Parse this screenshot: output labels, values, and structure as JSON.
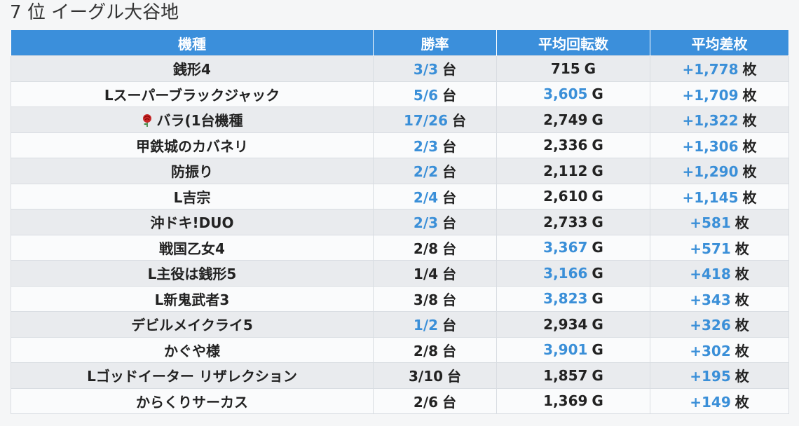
{
  "header": {
    "rank": "7",
    "rank_suffix": "位",
    "store_name": "イーグル大谷地"
  },
  "table": {
    "columns": [
      "機種",
      "勝率",
      "平均回転数",
      "平均差枚"
    ],
    "units": {
      "win": "台",
      "spins": "G",
      "diff": "枚"
    },
    "rows": [
      {
        "machine": "銭形4",
        "win": "3/3",
        "win_hl": true,
        "spins": "715",
        "spins_hl": false,
        "diff": "+1,778",
        "diff_hl": true
      },
      {
        "machine": "Lスーパーブラックジャック",
        "win": "5/6",
        "win_hl": true,
        "spins": "3,605",
        "spins_hl": true,
        "diff": "+1,709",
        "diff_hl": true
      },
      {
        "machine": "バラ(1台機種",
        "icon": "rose-icon",
        "win": "17/26",
        "win_hl": true,
        "spins": "2,749",
        "spins_hl": false,
        "diff": "+1,322",
        "diff_hl": true
      },
      {
        "machine": "甲鉄城のカバネリ",
        "win": "2/3",
        "win_hl": true,
        "spins": "2,336",
        "spins_hl": false,
        "diff": "+1,306",
        "diff_hl": true
      },
      {
        "machine": "防振り",
        "win": "2/2",
        "win_hl": true,
        "spins": "2,112",
        "spins_hl": false,
        "diff": "+1,290",
        "diff_hl": true
      },
      {
        "machine": "L吉宗",
        "win": "2/4",
        "win_hl": true,
        "spins": "2,610",
        "spins_hl": false,
        "diff": "+1,145",
        "diff_hl": true
      },
      {
        "machine": "沖ドキ!DUO",
        "win": "2/3",
        "win_hl": true,
        "spins": "2,733",
        "spins_hl": false,
        "diff": "+581",
        "diff_hl": true
      },
      {
        "machine": "戦国乙女4",
        "win": "2/8",
        "win_hl": false,
        "spins": "3,367",
        "spins_hl": true,
        "diff": "+571",
        "diff_hl": true
      },
      {
        "machine": "L主役は銭形5",
        "win": "1/4",
        "win_hl": false,
        "spins": "3,166",
        "spins_hl": true,
        "diff": "+418",
        "diff_hl": true
      },
      {
        "machine": "L新鬼武者3",
        "win": "3/8",
        "win_hl": false,
        "spins": "3,823",
        "spins_hl": true,
        "diff": "+343",
        "diff_hl": true
      },
      {
        "machine": "デビルメイクライ5",
        "win": "1/2",
        "win_hl": true,
        "spins": "2,934",
        "spins_hl": false,
        "diff": "+326",
        "diff_hl": true
      },
      {
        "machine": "かぐや様",
        "win": "2/8",
        "win_hl": false,
        "spins": "3,901",
        "spins_hl": true,
        "diff": "+302",
        "diff_hl": true
      },
      {
        "machine": "Lゴッドイーター リザレクション",
        "win": "3/10",
        "win_hl": false,
        "spins": "1,857",
        "spins_hl": false,
        "diff": "+195",
        "diff_hl": true
      },
      {
        "machine": "からくりサーカス",
        "win": "2/6",
        "win_hl": false,
        "spins": "1,369",
        "spins_hl": false,
        "diff": "+149",
        "diff_hl": true
      }
    ]
  },
  "colors": {
    "header_bg": "#3b8fdb",
    "highlight": "#3a8fd8",
    "row_odd": "#e9ebee",
    "row_even": "#fafbfc"
  }
}
